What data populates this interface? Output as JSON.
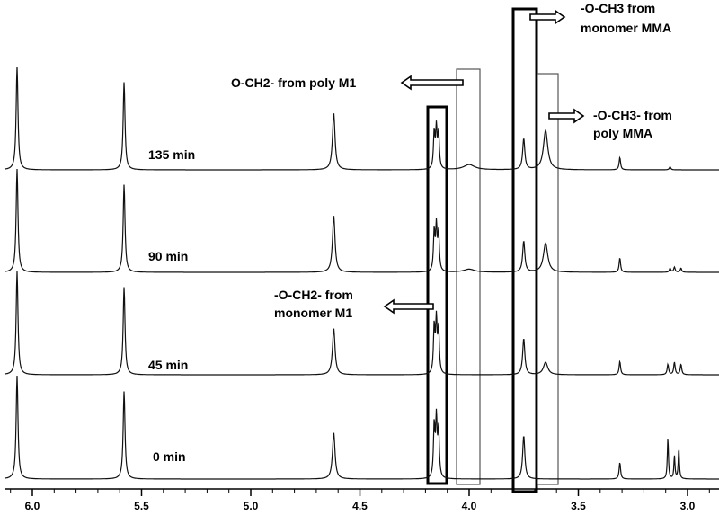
{
  "chart_data": {
    "type": "line",
    "title": "",
    "xlabel": "",
    "ylabel": "",
    "x_reversed": true,
    "xlim": [
      6.1,
      2.9
    ],
    "x_ticks": [
      "6.0",
      "5.5",
      "5.0",
      "4.5",
      "4.0",
      "3.5",
      "3.0"
    ],
    "x_tick_values": [
      6.0,
      5.5,
      5.0,
      4.5,
      4.0,
      3.5,
      3.0
    ],
    "series": [
      {
        "name": "135 min",
        "peaks": [
          {
            "ppm": 6.07,
            "height": 1.0,
            "width": 0.005
          },
          {
            "ppm": 5.58,
            "height": 0.85,
            "width": 0.005
          },
          {
            "ppm": 4.62,
            "height": 0.55,
            "width": 0.007
          },
          {
            "ppm": 4.16,
            "height": 0.35,
            "width": 0.004
          },
          {
            "ppm": 4.15,
            "height": 0.38,
            "width": 0.004
          },
          {
            "ppm": 4.14,
            "height": 0.34,
            "width": 0.004
          },
          {
            "ppm": 4.0,
            "height": 0.05,
            "width": 0.03
          },
          {
            "ppm": 3.75,
            "height": 0.3,
            "width": 0.006
          },
          {
            "ppm": 3.65,
            "height": 0.38,
            "width": 0.012
          },
          {
            "ppm": 3.31,
            "height": 0.12,
            "width": 0.004
          },
          {
            "ppm": 3.08,
            "height": 0.03,
            "width": 0.004
          }
        ]
      },
      {
        "name": "90 min",
        "peaks": [
          {
            "ppm": 6.07,
            "height": 1.0,
            "width": 0.005
          },
          {
            "ppm": 5.58,
            "height": 0.85,
            "width": 0.005
          },
          {
            "ppm": 4.62,
            "height": 0.55,
            "width": 0.007
          },
          {
            "ppm": 4.16,
            "height": 0.38,
            "width": 0.004
          },
          {
            "ppm": 4.15,
            "height": 0.42,
            "width": 0.004
          },
          {
            "ppm": 4.14,
            "height": 0.36,
            "width": 0.004
          },
          {
            "ppm": 4.0,
            "height": 0.03,
            "width": 0.03
          },
          {
            "ppm": 3.75,
            "height": 0.3,
            "width": 0.006
          },
          {
            "ppm": 3.65,
            "height": 0.28,
            "width": 0.012
          },
          {
            "ppm": 3.31,
            "height": 0.14,
            "width": 0.004
          },
          {
            "ppm": 3.08,
            "height": 0.04,
            "width": 0.004
          },
          {
            "ppm": 3.06,
            "height": 0.05,
            "width": 0.004
          },
          {
            "ppm": 3.03,
            "height": 0.04,
            "width": 0.004
          }
        ]
      },
      {
        "name": "45 min",
        "peaks": [
          {
            "ppm": 6.07,
            "height": 1.0,
            "width": 0.005
          },
          {
            "ppm": 5.58,
            "height": 0.85,
            "width": 0.005
          },
          {
            "ppm": 4.62,
            "height": 0.45,
            "width": 0.007
          },
          {
            "ppm": 4.16,
            "height": 0.45,
            "width": 0.004
          },
          {
            "ppm": 4.15,
            "height": 0.5,
            "width": 0.004
          },
          {
            "ppm": 4.14,
            "height": 0.42,
            "width": 0.004
          },
          {
            "ppm": 3.75,
            "height": 0.35,
            "width": 0.006
          },
          {
            "ppm": 3.65,
            "height": 0.12,
            "width": 0.012
          },
          {
            "ppm": 3.31,
            "height": 0.13,
            "width": 0.004
          },
          {
            "ppm": 3.09,
            "height": 0.1,
            "width": 0.004
          },
          {
            "ppm": 3.06,
            "height": 0.12,
            "width": 0.004
          },
          {
            "ppm": 3.03,
            "height": 0.1,
            "width": 0.004
          }
        ]
      },
      {
        "name": "0 min",
        "peaks": [
          {
            "ppm": 6.07,
            "height": 1.0,
            "width": 0.005
          },
          {
            "ppm": 5.58,
            "height": 0.85,
            "width": 0.005
          },
          {
            "ppm": 4.62,
            "height": 0.45,
            "width": 0.007
          },
          {
            "ppm": 4.16,
            "height": 0.5,
            "width": 0.004
          },
          {
            "ppm": 4.15,
            "height": 0.55,
            "width": 0.004
          },
          {
            "ppm": 4.14,
            "height": 0.45,
            "width": 0.004
          },
          {
            "ppm": 3.75,
            "height": 0.42,
            "width": 0.006
          },
          {
            "ppm": 3.31,
            "height": 0.16,
            "width": 0.004
          },
          {
            "ppm": 3.09,
            "height": 0.4,
            "width": 0.003
          },
          {
            "ppm": 3.06,
            "height": 0.22,
            "width": 0.003
          },
          {
            "ppm": 3.04,
            "height": 0.3,
            "width": 0.003
          }
        ]
      }
    ],
    "annotations": [
      {
        "text": "-O-CH3 from",
        "text2": "monomer MMA",
        "region": [
          3.78,
          3.7
        ],
        "style": "bold"
      },
      {
        "text": "O-CH2- from poly M1",
        "text2": "",
        "region": [
          4.07,
          3.98
        ],
        "style": "thin"
      },
      {
        "text": "-O-CH3- from",
        "text2": "poly MMA",
        "region": [
          3.69,
          3.61
        ],
        "style": "thin"
      },
      {
        "text": "-O-CH2- from",
        "text2": "monomer M1",
        "region": [
          4.2,
          4.12
        ],
        "style": "bold"
      }
    ]
  }
}
